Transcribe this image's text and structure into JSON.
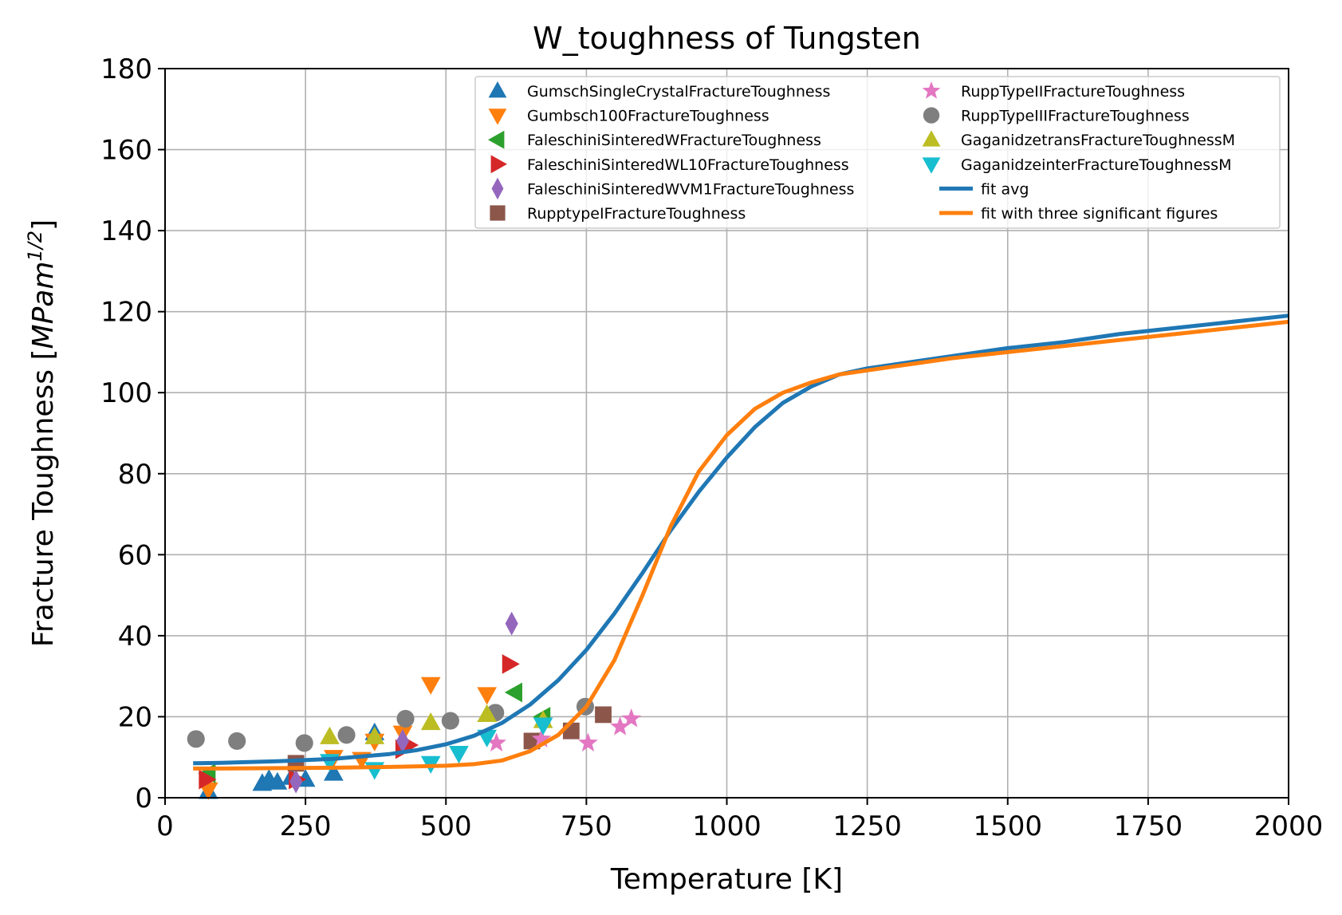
{
  "chart_data": {
    "type": "scatter",
    "title": "W_toughness of Tungsten",
    "xlabel": "Temperature [K]",
    "ylabel": "Fracture Toughness  [MPam^1/2]",
    "ylabel_base": "Fracture Toughness  [",
    "ylabel_unit": "MPam",
    "ylabel_exp": "1/2",
    "ylabel_close": "]",
    "xlim": [
      0,
      2000
    ],
    "ylim": [
      0,
      180
    ],
    "xticks": [
      0,
      250,
      500,
      750,
      1000,
      1250,
      1500,
      1750,
      2000
    ],
    "yticks": [
      0,
      20,
      40,
      60,
      80,
      100,
      120,
      140,
      160,
      180
    ],
    "grid": true,
    "legend_position": "upper-right",
    "series": [
      {
        "name": "GumschSingleCrystalFractureToughness",
        "marker": "triangle-up",
        "color": "#1f77b4",
        "x": [
          77,
          173,
          185,
          200,
          225,
          250,
          300,
          373
        ],
        "y": [
          1.5,
          3.5,
          4.5,
          3.8,
          5,
          4.5,
          6,
          16
        ]
      },
      {
        "name": "Gumbsch100FractureToughness",
        "marker": "triangle-down",
        "color": "#ff7f0e",
        "x": [
          77,
          300,
          350,
          373,
          423,
          473,
          573
        ],
        "y": [
          2,
          10,
          9.5,
          14,
          16,
          28,
          25.5
        ]
      },
      {
        "name": "FaleschiniSinteredWFractureToughness",
        "marker": "triangle-left",
        "color": "#2ca02c",
        "x": [
          77,
          623,
          673
        ],
        "y": [
          6,
          26,
          20
        ]
      },
      {
        "name": "FaleschiniSinteredWL10FractureToughness",
        "marker": "triangle-right",
        "color": "#d62728",
        "x": [
          73,
          233,
          423,
          433,
          613
        ],
        "y": [
          4.5,
          4.5,
          12,
          13,
          33
        ]
      },
      {
        "name": "FaleschiniSinteredWVM1FractureToughness",
        "marker": "diamond",
        "color": "#9467bd",
        "x": [
          233,
          423,
          617
        ],
        "y": [
          4,
          14,
          43
        ]
      },
      {
        "name": "RupptypeIFractureToughness",
        "marker": "square",
        "color": "#8c564b",
        "x": [
          233,
          653,
          723,
          780
        ],
        "y": [
          8.5,
          14,
          16.5,
          20.5
        ]
      },
      {
        "name": "RuppTypeIIFractureToughness",
        "marker": "star",
        "color": "#e377c2",
        "x": [
          590,
          670,
          753,
          810,
          830
        ],
        "y": [
          13.5,
          14.5,
          13.5,
          17.5,
          19.5
        ]
      },
      {
        "name": "RuppTypeIIIFractureToughness",
        "marker": "circle",
        "color": "#7f7f7f",
        "x": [
          55,
          128,
          248,
          323,
          428,
          508,
          588,
          748
        ],
        "y": [
          14.5,
          14,
          13.5,
          15.5,
          19.5,
          19,
          21,
          22.5
        ]
      },
      {
        "name": "GaganidzetransFractureToughnessM",
        "marker": "triangle-up",
        "color": "#bcbd22",
        "x": [
          293,
          373,
          473,
          573,
          673
        ],
        "y": [
          15,
          15,
          18.5,
          20.5,
          19
        ]
      },
      {
        "name": "GaganidzeinterFractureToughnessM",
        "marker": "triangle-down",
        "color": "#17becf",
        "x": [
          293,
          373,
          473,
          523,
          573,
          673
        ],
        "y": [
          9,
          7,
          8.5,
          11,
          15,
          18
        ]
      },
      {
        "name": "fit avg",
        "type": "line",
        "color": "#1f77b4",
        "x": [
          50,
          100,
          200,
          300,
          400,
          450,
          500,
          550,
          600,
          650,
          700,
          750,
          800,
          850,
          900,
          950,
          1000,
          1050,
          1100,
          1150,
          1200,
          1250,
          1300,
          1400,
          1500,
          1600,
          1700,
          1800,
          1900,
          2000
        ],
        "y": [
          8.5,
          8.6,
          9,
          9.6,
          10.8,
          11.8,
          13.2,
          15.3,
          18.5,
          23,
          29,
          36.5,
          45.5,
          55.5,
          66,
          75.5,
          84,
          91.5,
          97.5,
          101.5,
          104.5,
          106,
          107,
          109,
          111,
          112.5,
          114.5,
          116,
          117.5,
          119
        ]
      },
      {
        "name": "fit with three significant figures",
        "type": "line",
        "color": "#ff7f0e",
        "x": [
          50,
          100,
          200,
          300,
          400,
          500,
          550,
          600,
          650,
          700,
          750,
          800,
          850,
          900,
          950,
          1000,
          1050,
          1100,
          1150,
          1200,
          1250,
          1300,
          1400,
          1500,
          1600,
          1700,
          1800,
          1900,
          2000
        ],
        "y": [
          7.2,
          7.2,
          7.3,
          7.4,
          7.6,
          7.9,
          8.3,
          9.2,
          11.5,
          15.5,
          22.5,
          34,
          50,
          67,
          80.5,
          89.5,
          96,
          100,
          102.5,
          104.5,
          105.5,
          106.5,
          108.5,
          110,
          111.5,
          113,
          114.5,
          116,
          117.5
        ]
      }
    ]
  }
}
